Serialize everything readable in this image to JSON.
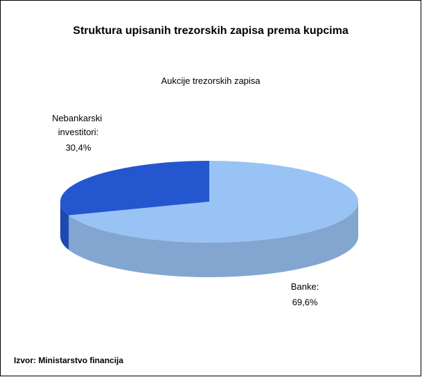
{
  "chart_data": {
    "type": "pie",
    "title": "Struktura upisanih trezorskih zapisa prema kupcima",
    "subtitle": "Aukcije trezorskih zapisa",
    "categories": [
      "Banke:",
      "Nebankarski investitori:"
    ],
    "values": [
      69.6,
      30.4
    ],
    "value_labels": [
      "69,6%",
      "30,4%"
    ],
    "colors": [
      "#99c3f5",
      "#2456cf"
    ],
    "source": "Izvor: Ministarstvo financija"
  }
}
